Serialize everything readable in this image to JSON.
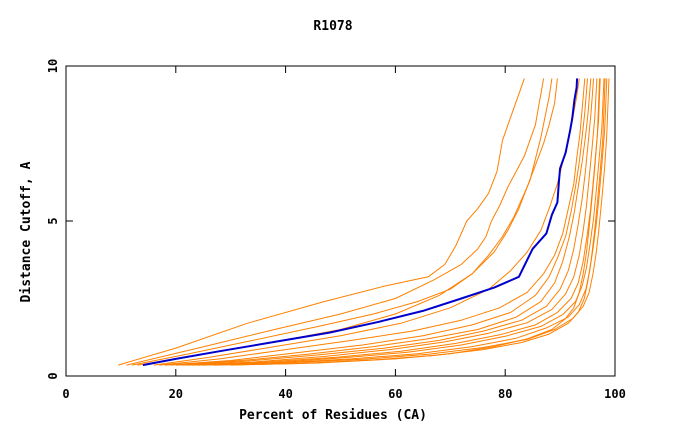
{
  "chart_data": {
    "type": "line",
    "title": "R1078",
    "xlabel": "Percent of Residues (CA)",
    "ylabel": "Distance Cutoff, A",
    "xlim": [
      0,
      100
    ],
    "ylim": [
      0,
      10
    ],
    "x_ticks": [
      {
        "value": 0,
        "label": "0"
      },
      {
        "value": 20,
        "label": "20"
      },
      {
        "value": 40,
        "label": "40"
      },
      {
        "value": 60,
        "label": "60"
      },
      {
        "value": 80,
        "label": "80"
      },
      {
        "value": 100,
        "label": "100"
      }
    ],
    "y_ticks": [
      {
        "value": 0,
        "label": "0"
      },
      {
        "value": 5,
        "label": "5"
      },
      {
        "value": 10,
        "label": "10"
      }
    ],
    "grid": false,
    "colors": {
      "highlight": "#0000cc",
      "others": "#ff8000"
    },
    "highlight_series": {
      "points": [
        [
          14,
          0.35
        ],
        [
          20,
          0.55
        ],
        [
          28,
          0.8
        ],
        [
          38,
          1.1
        ],
        [
          48,
          1.4
        ],
        [
          57,
          1.75
        ],
        [
          65,
          2.1
        ],
        [
          72,
          2.5
        ],
        [
          78,
          2.85
        ],
        [
          82.5,
          3.2
        ],
        [
          85,
          4.1
        ],
        [
          87.5,
          4.6
        ],
        [
          88.5,
          5.2
        ],
        [
          89.5,
          5.6
        ],
        [
          89.8,
          6.3
        ],
        [
          90,
          6.7
        ],
        [
          91,
          7.2
        ],
        [
          91.8,
          7.9
        ],
        [
          92.2,
          8.3
        ],
        [
          92.6,
          8.9
        ],
        [
          93,
          9.3
        ],
        [
          93.1,
          9.6
        ]
      ]
    },
    "other_series": [
      {
        "points": [
          [
            9.5,
            0.35
          ],
          [
            20,
            0.9
          ],
          [
            33,
            1.7
          ],
          [
            47,
            2.4
          ],
          [
            58,
            2.9
          ],
          [
            66,
            3.2
          ],
          [
            69,
            3.6
          ],
          [
            71,
            4.2
          ],
          [
            73,
            5.0
          ],
          [
            75,
            5.4
          ],
          [
            77,
            5.9
          ],
          [
            78.5,
            6.6
          ],
          [
            79.5,
            7.6
          ],
          [
            80.5,
            8.1
          ],
          [
            81.5,
            8.6
          ],
          [
            82.5,
            9.1
          ],
          [
            83.5,
            9.6
          ]
        ]
      },
      {
        "points": [
          [
            11,
            0.35
          ],
          [
            24,
            0.9
          ],
          [
            38,
            1.5
          ],
          [
            50,
            2.0
          ],
          [
            60,
            2.5
          ],
          [
            67,
            3.1
          ],
          [
            72,
            3.6
          ],
          [
            75,
            4.1
          ],
          [
            76.5,
            4.5
          ],
          [
            77.5,
            5.0
          ],
          [
            79,
            5.5
          ],
          [
            80.5,
            6.1
          ],
          [
            82,
            6.6
          ],
          [
            83.5,
            7.1
          ],
          [
            84.5,
            7.6
          ],
          [
            85.5,
            8.1
          ],
          [
            86,
            8.6
          ],
          [
            86.5,
            9.1
          ],
          [
            87,
            9.6
          ]
        ]
      },
      {
        "points": [
          [
            13,
            0.35
          ],
          [
            25,
            0.7
          ],
          [
            38,
            1.1
          ],
          [
            50,
            1.5
          ],
          [
            60,
            2.0
          ],
          [
            68,
            2.6
          ],
          [
            74,
            3.3
          ],
          [
            78,
            4.0
          ],
          [
            80.5,
            4.7
          ],
          [
            82.5,
            5.4
          ],
          [
            84,
            6.1
          ],
          [
            85.5,
            6.8
          ],
          [
            87,
            7.5
          ],
          [
            88,
            8.1
          ],
          [
            89,
            8.8
          ],
          [
            89.5,
            9.6
          ]
        ]
      },
      {
        "points": [
          [
            16,
            0.35
          ],
          [
            26,
            0.6
          ],
          [
            38,
            0.95
          ],
          [
            50,
            1.3
          ],
          [
            61,
            1.7
          ],
          [
            70,
            2.2
          ],
          [
            77,
            2.8
          ],
          [
            81,
            3.4
          ],
          [
            84,
            4.0
          ],
          [
            86.5,
            4.7
          ],
          [
            88,
            5.4
          ],
          [
            89.5,
            6.2
          ],
          [
            90.5,
            6.9
          ],
          [
            91.5,
            7.6
          ],
          [
            92.3,
            8.3
          ],
          [
            93,
            9.0
          ],
          [
            93.5,
            9.6
          ]
        ]
      },
      {
        "points": [
          [
            17,
            0.35
          ],
          [
            28,
            0.55
          ],
          [
            40,
            0.85
          ],
          [
            52,
            1.15
          ],
          [
            63,
            1.45
          ],
          [
            72,
            1.8
          ],
          [
            79,
            2.2
          ],
          [
            84,
            2.7
          ],
          [
            87,
            3.3
          ],
          [
            89,
            3.9
          ],
          [
            90.5,
            4.6
          ],
          [
            91.5,
            5.4
          ],
          [
            92.5,
            6.2
          ],
          [
            93,
            7.0
          ],
          [
            93.6,
            7.8
          ],
          [
            94,
            8.6
          ],
          [
            94.5,
            9.6
          ]
        ]
      },
      {
        "points": [
          [
            18,
            0.35
          ],
          [
            30,
            0.5
          ],
          [
            42,
            0.75
          ],
          [
            54,
            1.0
          ],
          [
            65,
            1.3
          ],
          [
            74,
            1.65
          ],
          [
            81,
            2.05
          ],
          [
            85.5,
            2.6
          ],
          [
            88,
            3.2
          ],
          [
            89.5,
            3.8
          ],
          [
            91,
            4.5
          ],
          [
            92,
            5.3
          ],
          [
            92.8,
            6.1
          ],
          [
            93.5,
            6.9
          ],
          [
            94,
            7.7
          ],
          [
            94.5,
            8.5
          ],
          [
            95,
            9.6
          ]
        ]
      },
      {
        "points": [
          [
            19,
            0.35
          ],
          [
            32,
            0.5
          ],
          [
            44,
            0.7
          ],
          [
            56,
            0.95
          ],
          [
            66,
            1.2
          ],
          [
            75,
            1.5
          ],
          [
            82,
            1.9
          ],
          [
            86.5,
            2.4
          ],
          [
            89,
            3.0
          ],
          [
            90.5,
            3.7
          ],
          [
            91.7,
            4.5
          ],
          [
            92.6,
            5.3
          ],
          [
            93.3,
            6.1
          ],
          [
            94,
            6.9
          ],
          [
            94.6,
            7.7
          ],
          [
            95.1,
            8.5
          ],
          [
            95.6,
            9.6
          ]
        ]
      },
      {
        "points": [
          [
            20,
            0.35
          ],
          [
            33,
            0.48
          ],
          [
            46,
            0.68
          ],
          [
            58,
            0.9
          ],
          [
            68,
            1.15
          ],
          [
            76,
            1.45
          ],
          [
            83,
            1.8
          ],
          [
            87.5,
            2.25
          ],
          [
            90,
            2.8
          ],
          [
            91.5,
            3.4
          ],
          [
            92.5,
            4.1
          ],
          [
            93.3,
            4.9
          ],
          [
            94,
            5.7
          ],
          [
            94.6,
            6.6
          ],
          [
            95.1,
            7.5
          ],
          [
            95.6,
            8.4
          ],
          [
            96.1,
            9.6
          ]
        ]
      },
      {
        "points": [
          [
            21,
            0.35
          ],
          [
            34,
            0.45
          ],
          [
            47,
            0.63
          ],
          [
            59,
            0.85
          ],
          [
            69,
            1.1
          ],
          [
            77,
            1.38
          ],
          [
            84,
            1.72
          ],
          [
            88.5,
            2.15
          ],
          [
            91,
            2.65
          ],
          [
            92.5,
            3.2
          ],
          [
            93.5,
            3.9
          ],
          [
            94.2,
            4.7
          ],
          [
            94.8,
            5.5
          ],
          [
            95.3,
            6.4
          ],
          [
            95.8,
            7.3
          ],
          [
            96.3,
            8.3
          ],
          [
            96.7,
            9.6
          ]
        ]
      },
      {
        "points": [
          [
            22,
            0.35
          ],
          [
            36,
            0.45
          ],
          [
            49,
            0.6
          ],
          [
            61,
            0.8
          ],
          [
            71,
            1.05
          ],
          [
            79,
            1.33
          ],
          [
            85.5,
            1.65
          ],
          [
            89.5,
            2.05
          ],
          [
            92,
            2.5
          ],
          [
            93.3,
            3.0
          ],
          [
            94.2,
            3.7
          ],
          [
            94.9,
            4.5
          ],
          [
            95.5,
            5.3
          ],
          [
            96,
            6.2
          ],
          [
            96.5,
            7.2
          ],
          [
            97,
            8.2
          ],
          [
            97.3,
            9.6
          ]
        ]
      },
      {
        "points": [
          [
            23,
            0.35
          ],
          [
            37,
            0.43
          ],
          [
            50,
            0.58
          ],
          [
            62,
            0.76
          ],
          [
            72,
            1.0
          ],
          [
            80,
            1.28
          ],
          [
            86.5,
            1.6
          ],
          [
            90.5,
            1.98
          ],
          [
            92.8,
            2.4
          ],
          [
            94,
            2.9
          ],
          [
            94.8,
            3.5
          ],
          [
            95.5,
            4.3
          ],
          [
            96.1,
            5.1
          ],
          [
            96.6,
            6.0
          ],
          [
            97.1,
            7.0
          ],
          [
            97.6,
            8.0
          ],
          [
            98,
            9.6
          ]
        ]
      },
      {
        "points": [
          [
            24,
            0.35
          ],
          [
            38,
            0.42
          ],
          [
            52,
            0.55
          ],
          [
            64,
            0.72
          ],
          [
            74,
            0.95
          ],
          [
            82,
            1.22
          ],
          [
            87.5,
            1.55
          ],
          [
            91.5,
            1.9
          ],
          [
            93.5,
            2.3
          ],
          [
            94.7,
            2.8
          ],
          [
            95.4,
            3.4
          ],
          [
            96,
            4.1
          ],
          [
            96.6,
            4.9
          ],
          [
            97.1,
            5.8
          ],
          [
            97.6,
            6.8
          ],
          [
            98.1,
            7.9
          ],
          [
            98.5,
            9.6
          ]
        ]
      },
      {
        "points": [
          [
            25,
            0.35
          ],
          [
            40,
            0.42
          ],
          [
            54,
            0.54
          ],
          [
            66,
            0.7
          ],
          [
            76,
            0.92
          ],
          [
            84,
            1.18
          ],
          [
            89,
            1.5
          ],
          [
            92.3,
            1.85
          ],
          [
            94.2,
            2.25
          ],
          [
            95.3,
            2.7
          ],
          [
            96,
            3.3
          ],
          [
            96.6,
            4.0
          ],
          [
            97.1,
            4.8
          ],
          [
            97.6,
            5.7
          ],
          [
            98.1,
            6.7
          ],
          [
            98.5,
            7.8
          ],
          [
            98.9,
            9.6
          ]
        ]
      },
      {
        "points": [
          [
            27,
            0.35
          ],
          [
            42,
            0.4
          ],
          [
            56,
            0.52
          ],
          [
            67,
            0.66
          ],
          [
            76,
            0.85
          ],
          [
            83,
            1.08
          ],
          [
            88,
            1.35
          ],
          [
            91.5,
            1.7
          ],
          [
            93.3,
            2.05
          ],
          [
            94.4,
            2.5
          ],
          [
            95.1,
            3.1
          ],
          [
            95.7,
            3.8
          ],
          [
            96.3,
            4.7
          ],
          [
            96.8,
            5.6
          ],
          [
            97.3,
            6.6
          ],
          [
            97.8,
            7.7
          ],
          [
            98.2,
            9.6
          ]
        ]
      },
      {
        "points": [
          [
            30,
            0.35
          ],
          [
            46,
            0.42
          ],
          [
            60,
            0.55
          ],
          [
            70,
            0.72
          ],
          [
            78,
            0.95
          ],
          [
            84,
            1.2
          ],
          [
            88.5,
            1.5
          ],
          [
            91,
            1.85
          ],
          [
            92.5,
            2.2
          ],
          [
            93.5,
            2.7
          ],
          [
            94.2,
            3.3
          ],
          [
            94.8,
            4.0
          ],
          [
            95.3,
            4.8
          ],
          [
            95.8,
            5.7
          ],
          [
            96.3,
            6.7
          ],
          [
            96.8,
            7.8
          ],
          [
            97.2,
            9.6
          ]
        ]
      },
      {
        "points": [
          [
            12,
            0.35
          ],
          [
            22,
            0.7
          ],
          [
            34,
            1.15
          ],
          [
            46,
            1.6
          ],
          [
            56,
            2.0
          ],
          [
            64,
            2.4
          ],
          [
            70,
            2.8
          ],
          [
            74,
            3.3
          ],
          [
            77,
            3.9
          ],
          [
            79.5,
            4.5
          ],
          [
            81.5,
            5.1
          ],
          [
            83,
            5.7
          ],
          [
            84.5,
            6.3
          ],
          [
            85.5,
            7.0
          ],
          [
            86.5,
            7.7
          ],
          [
            87.3,
            8.4
          ],
          [
            88,
            9.0
          ],
          [
            88.5,
            9.6
          ]
        ]
      }
    ]
  }
}
